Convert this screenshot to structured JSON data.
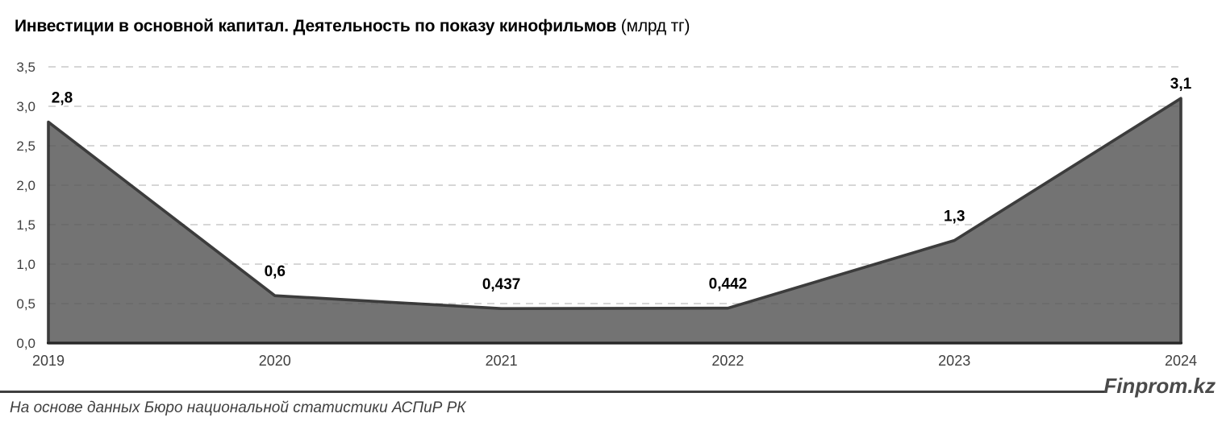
{
  "title": {
    "main": "Инвестиции в основной капитал. Деятельность по показу кинофильмов",
    "unit": " (млрд тг)"
  },
  "chart_data": {
    "type": "area",
    "title": "Инвестиции в основной капитал. Деятельность по показу кинофильмов (млрд тг)",
    "categories": [
      "2019",
      "2020",
      "2021",
      "2022",
      "2023",
      "2024"
    ],
    "values": [
      2.8,
      0.6,
      0.437,
      0.442,
      1.3,
      3.1
    ],
    "point_labels": [
      "2,8",
      "0,6",
      "0,437",
      "0,442",
      "1,3",
      "3,1"
    ],
    "xlabel": "",
    "ylabel": "",
    "ylim": [
      0,
      3.5
    ],
    "ytick_step": 0.5,
    "ytick_labels": [
      "0,0",
      "0,5",
      "1,0",
      "1,5",
      "2,0",
      "2,5",
      "3,0",
      "3,5"
    ],
    "grid": "horizontal-dashed",
    "legend": "none",
    "colors": {
      "area_fill": "#737373",
      "series_line": "#3c3c3c",
      "gridline": "#d9d9d9",
      "axis_line": "#262626",
      "tick_text": "#404040",
      "data_label_text": "#000000"
    }
  },
  "footer": {
    "source": "На основе данных Бюро национальной статистики АСПиР РК",
    "watermark": "Finprom.kz"
  }
}
